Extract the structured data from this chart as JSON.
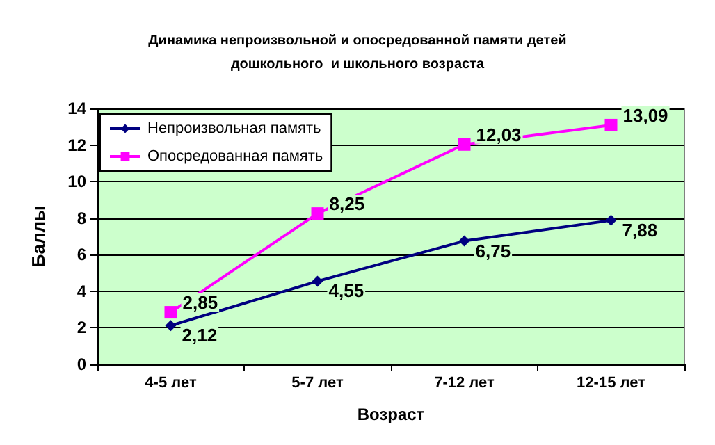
{
  "chart_data": {
    "type": "line",
    "title": "Динамика непроизвольной и опосредованной памяти детей\nдошкольного  и школьного возраста",
    "xlabel": "Возраст",
    "ylabel": "Баллы",
    "categories": [
      "4-5 лет",
      "5-7 лет",
      "7-12 лет",
      "12-15 лет"
    ],
    "series": [
      {
        "name": "Непроизвольная память",
        "color": "#000080",
        "marker": "diamond",
        "values": [
          2.12,
          4.55,
          6.75,
          7.88
        ],
        "value_labels": [
          "2,12",
          "4,55",
          "6,75",
          "7,88"
        ]
      },
      {
        "name": "Опосредованная память",
        "color": "#ff00ff",
        "marker": "square",
        "values": [
          2.85,
          8.25,
          12.03,
          13.09
        ],
        "value_labels": [
          "2,85",
          "8,25",
          "12,03",
          "13,09"
        ]
      }
    ],
    "ylim": [
      0,
      14
    ],
    "yticks": [
      0,
      2,
      4,
      6,
      8,
      10,
      12,
      14
    ],
    "grid": "y",
    "legend": "top left"
  }
}
